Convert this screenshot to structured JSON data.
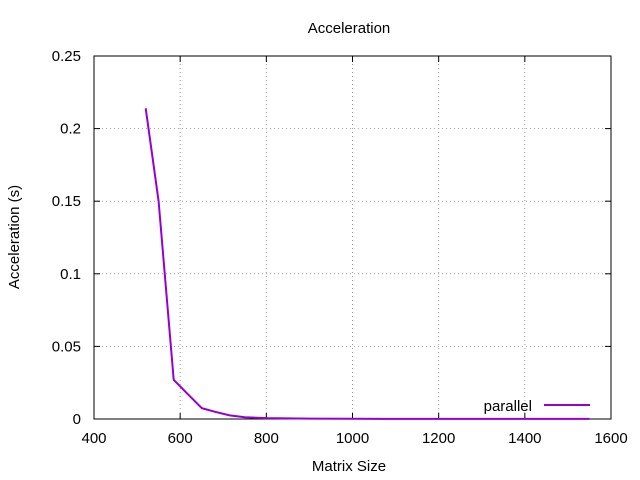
{
  "chart_data": {
    "type": "line",
    "title": "Acceleration",
    "xlabel": "Matrix Size",
    "ylabel": "Acceleration (s)",
    "xlim": [
      400,
      1600
    ],
    "ylim": [
      0,
      0.25
    ],
    "x_ticks": [
      400,
      600,
      800,
      1000,
      1200,
      1400,
      1600
    ],
    "y_ticks": [
      0,
      0.05,
      0.1,
      0.15,
      0.2,
      0.25
    ],
    "x_tick_labels": [
      "400",
      "600",
      "800",
      "1000",
      "1200",
      "1400",
      "1600"
    ],
    "y_tick_labels": [
      "0",
      "0.05",
      "0.1",
      "0.15",
      "0.2",
      "0.25"
    ],
    "grid": true,
    "legend_position": "bottom-right",
    "series": [
      {
        "name": "parallel",
        "color": "#9400d3",
        "x": [
          520,
          550,
          585,
          615,
          650,
          680,
          715,
          750,
          800,
          900,
          1000,
          1100,
          1200,
          1300,
          1400,
          1500,
          1550
        ],
        "y": [
          0.214,
          0.15,
          0.027,
          0.018,
          0.0075,
          0.005,
          0.0025,
          0.0012,
          0.0006,
          0.0003,
          0.0002,
          0.0001,
          0.0001,
          0.0001,
          0.0001,
          0.0001,
          0.0001
        ]
      }
    ]
  }
}
